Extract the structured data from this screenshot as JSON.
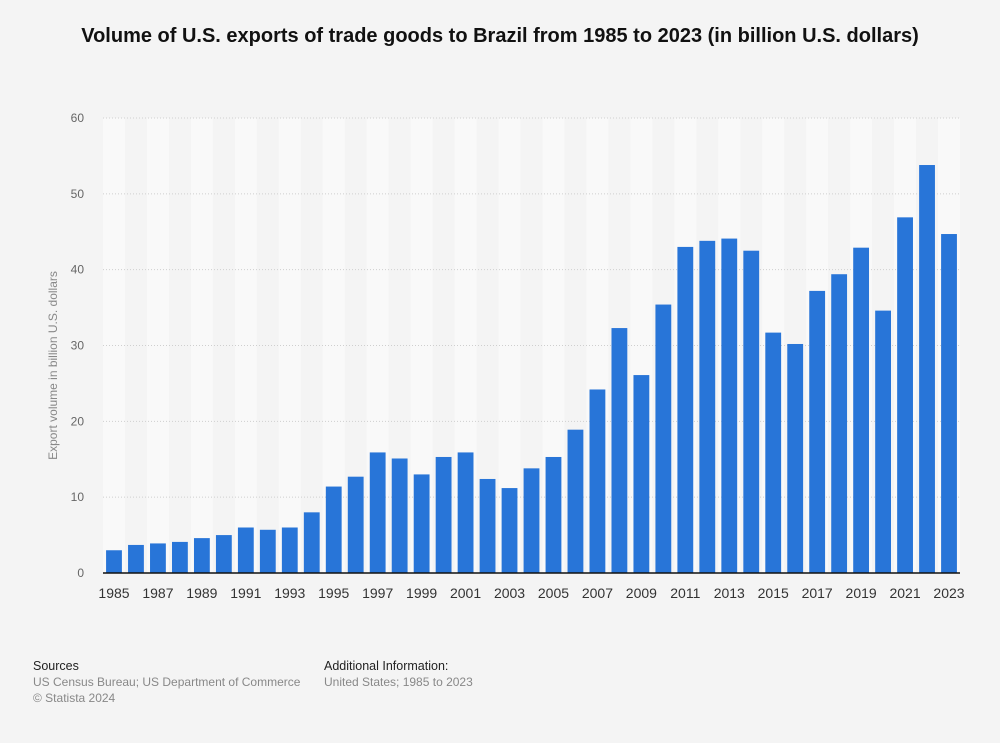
{
  "chart_data": {
    "type": "bar",
    "title": "Volume of U.S. exports of trade goods to Brazil from 1985 to 2023 (in billion U.S. dollars)",
    "xlabel": "",
    "ylabel": "Export volume in billion U.S. dollars",
    "ylim": [
      0,
      60
    ],
    "yticks": [
      0,
      10,
      20,
      30,
      40,
      50,
      60
    ],
    "grid": true,
    "bar_color": "#2875d8",
    "categories": [
      "1985",
      "1986",
      "1987",
      "1988",
      "1989",
      "1990",
      "1991",
      "1992",
      "1993",
      "1994",
      "1995",
      "1996",
      "1997",
      "1998",
      "1999",
      "2000",
      "2001",
      "2002",
      "2003",
      "2004",
      "2005",
      "2006",
      "2007",
      "2008",
      "2009",
      "2010",
      "2011",
      "2012",
      "2013",
      "2014",
      "2015",
      "2016",
      "2017",
      "2018",
      "2019",
      "2020",
      "2021",
      "2022",
      "2023"
    ],
    "xtick_labels": [
      "1985",
      "1987",
      "1989",
      "1991",
      "1993",
      "1995",
      "1997",
      "1999",
      "2001",
      "2003",
      "2005",
      "2007",
      "2009",
      "2011",
      "2013",
      "2015",
      "2017",
      "2019",
      "2021",
      "2023"
    ],
    "values": [
      3.0,
      3.7,
      3.9,
      4.1,
      4.6,
      5.0,
      6.0,
      5.7,
      6.0,
      8.0,
      11.4,
      12.7,
      15.9,
      15.1,
      13.0,
      15.3,
      15.9,
      12.4,
      11.2,
      13.8,
      15.3,
      18.9,
      24.2,
      32.3,
      26.1,
      35.4,
      43.0,
      43.8,
      44.1,
      42.5,
      31.7,
      30.2,
      37.2,
      39.4,
      42.9,
      34.6,
      46.9,
      53.8,
      44.7
    ]
  },
  "footer": {
    "sources_heading": "Sources",
    "sources_line1": "US Census Bureau; US Department of Commerce",
    "sources_line2": "© Statista 2024",
    "additional_heading": "Additional Information:",
    "additional_line1": "United States; 1985 to 2023"
  }
}
